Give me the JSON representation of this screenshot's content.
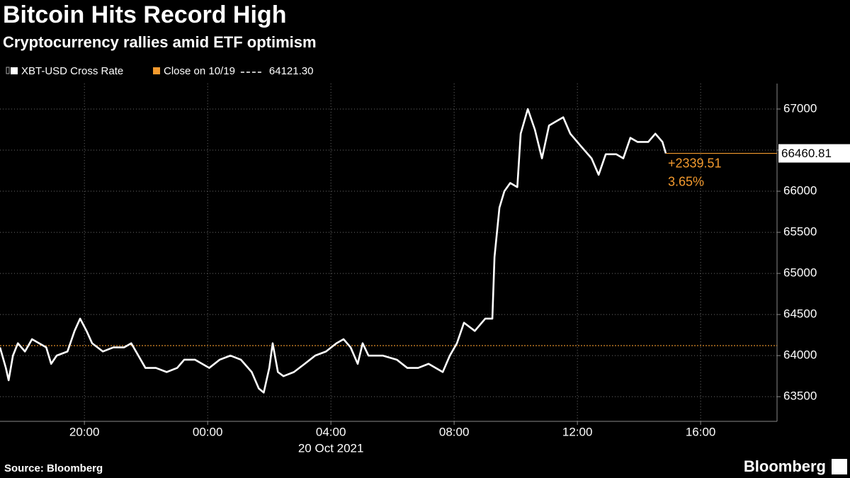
{
  "chart_data": {
    "type": "line",
    "title": "Bitcoin Hits Record High",
    "subtitle": "Cryptocurrency rallies amid ETF optimism",
    "source": "Source: Bloomberg",
    "brand": "Bloomberg",
    "x_sublabel": "20 Oct 2021",
    "xlim": [
      -6.74,
      18.48
    ],
    "xticks": [
      {
        "value": -4,
        "label": "20:00"
      },
      {
        "value": 0,
        "label": "00:00"
      },
      {
        "value": 4,
        "label": "04:00"
      },
      {
        "value": 8,
        "label": "08:00"
      },
      {
        "value": 12,
        "label": "12:00"
      },
      {
        "value": 16,
        "label": "16:00"
      }
    ],
    "ylim": [
      63200,
      67310
    ],
    "yticks": [
      63500,
      64000,
      64500,
      65000,
      65500,
      66000,
      66500,
      67000
    ],
    "grid": true,
    "series": [
      {
        "name": "XBT-USD Cross Rate",
        "color": "#ffffff",
        "x": [
          -6.74,
          -6.55,
          -6.46,
          -6.32,
          -6.16,
          -5.93,
          -5.7,
          -5.47,
          -5.24,
          -5.08,
          -4.9,
          -4.55,
          -4.32,
          -4.14,
          -3.93,
          -3.75,
          -3.4,
          -3.06,
          -2.71,
          -2.48,
          -2.25,
          -2.02,
          -1.68,
          -1.33,
          -0.99,
          -0.76,
          -0.41,
          0.05,
          0.39,
          0.74,
          1.08,
          1.43,
          1.66,
          1.82,
          2.0,
          2.11,
          2.28,
          2.46,
          2.8,
          3.15,
          3.49,
          3.84,
          4.18,
          4.41,
          4.64,
          4.87,
          5.03,
          5.22,
          5.68,
          6.14,
          6.48,
          6.83,
          7.17,
          7.63,
          7.86,
          8.09,
          8.32,
          8.67,
          9.01,
          9.24,
          9.31,
          9.47,
          9.63,
          9.82,
          10.05,
          10.16,
          10.39,
          10.62,
          10.85,
          11.08,
          11.31,
          11.54,
          11.77,
          12.11,
          12.46,
          12.69,
          12.92,
          13.26,
          13.49,
          13.72,
          13.95,
          14.3,
          14.53,
          14.76,
          14.87
        ],
        "values": [
          64100,
          63850,
          63700,
          64000,
          64150,
          64050,
          64200,
          64150,
          64100,
          63900,
          64000,
          64050,
          64300,
          64450,
          64300,
          64150,
          64050,
          64100,
          64100,
          64150,
          64000,
          63850,
          63850,
          63800,
          63850,
          63950,
          63950,
          63850,
          63950,
          64000,
          63950,
          63800,
          63600,
          63550,
          63850,
          64150,
          63800,
          63750,
          63800,
          63900,
          64000,
          64050,
          64150,
          64200,
          64100,
          63900,
          64150,
          64000,
          64000,
          63950,
          63850,
          63850,
          63900,
          63800,
          64000,
          64150,
          64400,
          64300,
          64450,
          64450,
          65200,
          65800,
          66000,
          66100,
          66050,
          66700,
          67000,
          66750,
          66400,
          66800,
          66850,
          66900,
          66700,
          66550,
          66400,
          66200,
          66450,
          66450,
          66400,
          66650,
          66600,
          66600,
          66700,
          66600,
          66460.81
        ]
      }
    ],
    "reference": {
      "name": "Close on 10/19",
      "value": 64121.3,
      "value_label": "64121.30",
      "color": "#f39a2e"
    },
    "annotations": [
      "+2339.51",
      "3.65%"
    ]
  }
}
